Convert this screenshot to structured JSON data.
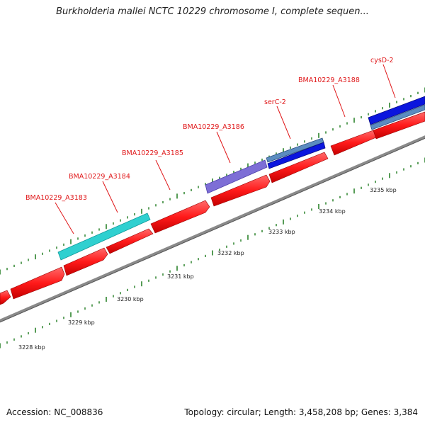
{
  "title": "Burkholderia mallei NCTC 10229 chromosome I, complete sequen...",
  "footer": {
    "accession": "Accession: NC_008836",
    "summary": "Topology: circular; Length: 3,458,208 bp; Genes: 3,384"
  },
  "scale": {
    "unit": "kbp",
    "labels": [
      "3228 kbp",
      "3229 kbp",
      "3230 kbp",
      "3231 kbp",
      "3232 kbp",
      "3233 kbp",
      "3234 kbp",
      "3235 kbp"
    ]
  },
  "genes": [
    {
      "name": "BMA10229_A3183",
      "color": "#ff2020"
    },
    {
      "name": "BMA10229_A3184",
      "color": "#ff2020"
    },
    {
      "name": "BMA10229_A3185",
      "color": "#ff2020"
    },
    {
      "name": "BMA10229_A3186",
      "color": "#ff2020"
    },
    {
      "name": "serC-2",
      "color": "#ff2020"
    },
    {
      "name": "BMA10229_A3188",
      "color": "#ff2020"
    },
    {
      "name": "cysD-2",
      "color": "#ff2020"
    }
  ],
  "feature_colors": {
    "cds": "#ff2020",
    "rrna_teal": "#25c8c8",
    "purple": "#7a6cd0",
    "steelblue": "#4d7fb0",
    "blue": "#0a16d6",
    "backbone": "#888888",
    "ticks": "#1d7a1d"
  }
}
